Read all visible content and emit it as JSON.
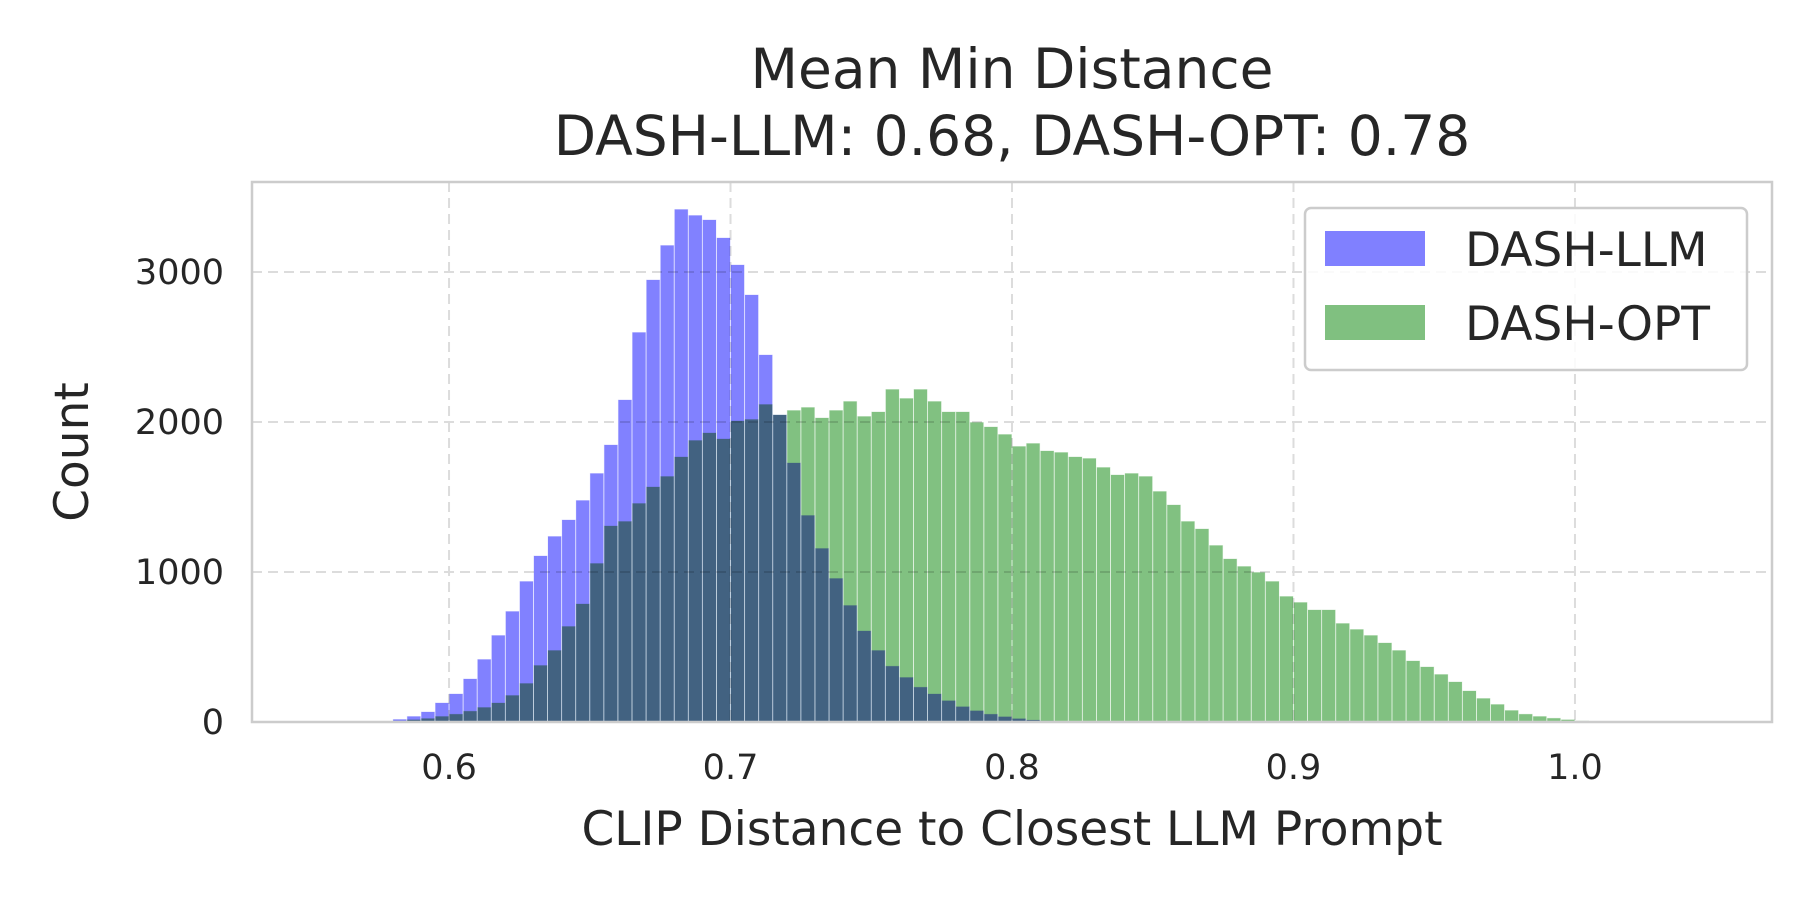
{
  "chart_data": {
    "type": "histogram",
    "title": "Mean Min Distance",
    "subtitle": "DASH-LLM: 0.68, DASH-OPT: 0.78",
    "xlabel": "CLIP Distance to Closest LLM Prompt",
    "ylabel": "Count",
    "xlim": [
      0.53,
      1.07
    ],
    "ylim": [
      0,
      3600
    ],
    "xticks": [
      0.6,
      0.7,
      0.8,
      0.9,
      1.0
    ],
    "xtick_labels": [
      "0.6",
      "0.7",
      "0.8",
      "0.9",
      "1.0"
    ],
    "yticks": [
      0,
      1000,
      2000,
      3000
    ],
    "ytick_labels": [
      "0",
      "1000",
      "2000",
      "3000"
    ],
    "grid": true,
    "legend_position": "top-right",
    "bin_start": 0.58,
    "bin_width": 0.005,
    "series": [
      {
        "name": "DASH-LLM",
        "color": "#8080ff",
        "values": [
          20,
          40,
          70,
          130,
          190,
          290,
          420,
          580,
          740,
          940,
          1110,
          1240,
          1350,
          1480,
          1660,
          1850,
          2150,
          2600,
          2950,
          3180,
          3420,
          3380,
          3350,
          3230,
          3050,
          2850,
          2450,
          2050,
          1730,
          1380,
          1160,
          960,
          780,
          610,
          480,
          375,
          300,
          235,
          190,
          145,
          105,
          78,
          55,
          38,
          25,
          16,
          10,
          6,
          3,
          1
        ]
      },
      {
        "name": "DASH-OPT",
        "color": "#80c080",
        "values": [
          10,
          18,
          26,
          40,
          55,
          75,
          100,
          130,
          180,
          260,
          380,
          480,
          640,
          790,
          1060,
          1310,
          1340,
          1460,
          1570,
          1640,
          1770,
          1880,
          1930,
          1890,
          2010,
          2020,
          2120,
          2050,
          2080,
          2100,
          2030,
          2080,
          2140,
          2040,
          2070,
          2220,
          2160,
          2220,
          2140,
          2070,
          2070,
          2000,
          1970,
          1920,
          1840,
          1860,
          1810,
          1800,
          1770,
          1760,
          1700,
          1650,
          1660,
          1640,
          1540,
          1450,
          1340,
          1290,
          1180,
          1090,
          1040,
          1000,
          940,
          840,
          800,
          750,
          750,
          660,
          620,
          580,
          530,
          480,
          410,
          370,
          320,
          270,
          210,
          160,
          120,
          80,
          55,
          40,
          28,
          18,
          10,
          6
        ]
      }
    ]
  }
}
